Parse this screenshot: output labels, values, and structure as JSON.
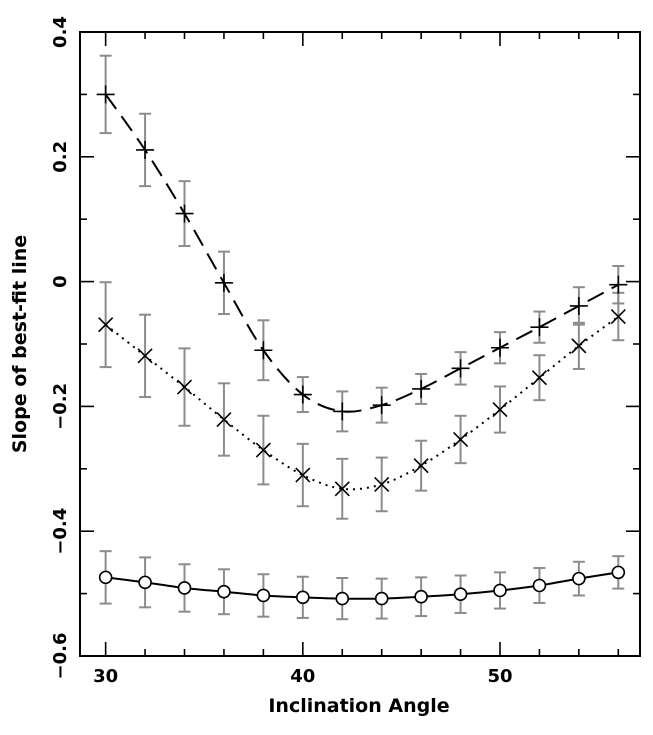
{
  "chart_data": {
    "type": "line",
    "title": "",
    "xlabel": "Inclination Angle",
    "ylabel": "Slope of best-fit line",
    "xlim": [
      28.7,
      57.1
    ],
    "ylim": [
      -0.6,
      0.4
    ],
    "xticks": [
      30,
      40,
      50
    ],
    "yticks": [
      -0.6,
      -0.4,
      -0.2,
      0,
      0.2,
      0.4
    ],
    "xtick_labels": [
      "30",
      "40",
      "50"
    ],
    "ytick_labels": [
      "−0.6",
      "−0.4",
      "−0.2",
      "0",
      "0.2",
      "0.4"
    ],
    "grid": false,
    "error_bar_color": "#8c8c8c",
    "series": [
      {
        "name": "plus (dashed)",
        "marker": "plus",
        "line_style": "dashed",
        "x": [
          30,
          32,
          34,
          36,
          38,
          40,
          42,
          44,
          46,
          48,
          50,
          52,
          54,
          56
        ],
        "y": [
          0.3,
          0.211,
          0.109,
          -0.002,
          -0.11,
          -0.181,
          -0.208,
          -0.198,
          -0.172,
          -0.139,
          -0.106,
          -0.073,
          -0.039,
          -0.005
        ],
        "err": [
          0.062,
          0.058,
          0.052,
          0.05,
          0.048,
          0.028,
          0.032,
          0.028,
          0.024,
          0.026,
          0.025,
          0.025,
          0.03,
          0.03
        ]
      },
      {
        "name": "cross (dotted)",
        "marker": "cross",
        "line_style": "dotted",
        "x": [
          30,
          32,
          34,
          36,
          38,
          40,
          42,
          44,
          46,
          48,
          50,
          52,
          54,
          56
        ],
        "y": [
          -0.069,
          -0.119,
          -0.169,
          -0.221,
          -0.27,
          -0.31,
          -0.332,
          -0.325,
          -0.295,
          -0.253,
          -0.205,
          -0.154,
          -0.103,
          -0.056
        ],
        "err": [
          0.068,
          0.066,
          0.062,
          0.058,
          0.055,
          0.05,
          0.048,
          0.043,
          0.04,
          0.038,
          0.037,
          0.036,
          0.037,
          0.038
        ]
      },
      {
        "name": "circle (solid)",
        "marker": "circle",
        "line_style": "solid",
        "x": [
          30,
          32,
          34,
          36,
          38,
          40,
          42,
          44,
          46,
          48,
          50,
          52,
          54,
          56
        ],
        "y": [
          -0.474,
          -0.482,
          -0.491,
          -0.497,
          -0.503,
          -0.506,
          -0.508,
          -0.508,
          -0.505,
          -0.501,
          -0.495,
          -0.487,
          -0.476,
          -0.466
        ],
        "err": [
          0.042,
          0.04,
          0.038,
          0.036,
          0.034,
          0.033,
          0.033,
          0.032,
          0.031,
          0.03,
          0.029,
          0.028,
          0.027,
          0.026
        ]
      }
    ]
  }
}
